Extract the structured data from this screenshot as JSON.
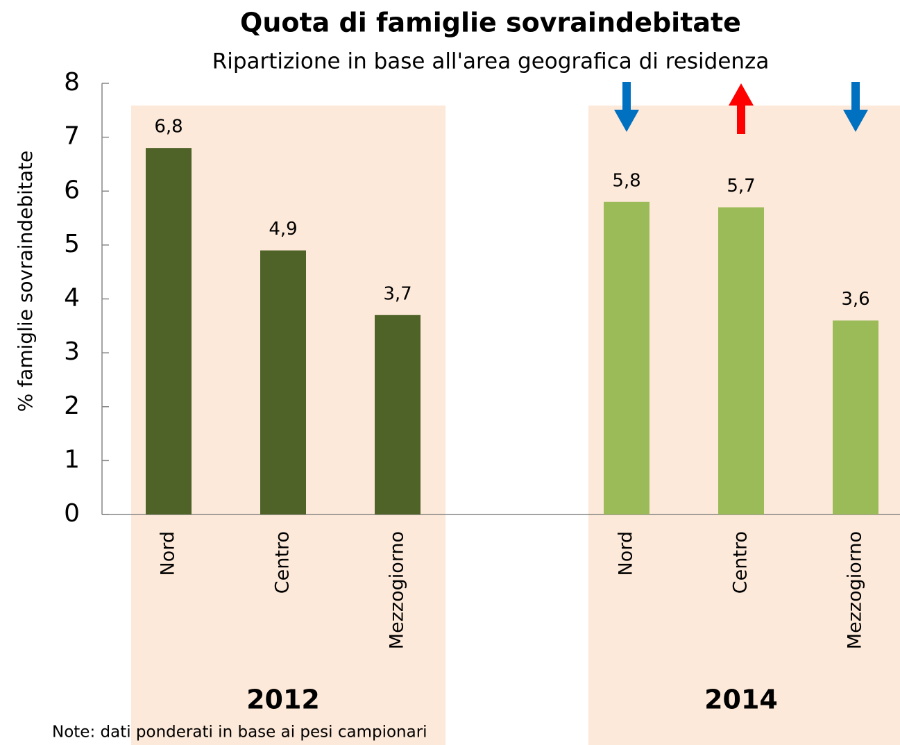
{
  "chart_data": {
    "type": "bar",
    "title": "Quota di famiglie sovraindebitate",
    "subtitle": "Ripartizione in base all'area geografica di residenza",
    "y_label": "% famiglie sovraindebitate",
    "categories": [
      "Nord",
      "Centro",
      "Mezzogiorno"
    ],
    "series": [
      {
        "name": "2012",
        "color": "#4f6228",
        "values": [
          6.8,
          4.9,
          3.7
        ],
        "value_labels": [
          "6,8",
          "4,9",
          "3,7"
        ]
      },
      {
        "name": "2014",
        "color": "#9bbb59",
        "values": [
          5.8,
          5.7,
          3.6
        ],
        "value_labels": [
          "5,8",
          "5,7",
          "3,6"
        ]
      }
    ],
    "ylim": [
      0,
      8
    ],
    "yticks": [
      0,
      1,
      2,
      3,
      4,
      5,
      6,
      7,
      8
    ],
    "arrow_colors": {
      "down": "#0070c0",
      "up": "#ff0000"
    },
    "note": "Note: dati ponderati in base ai pesi campionari"
  }
}
